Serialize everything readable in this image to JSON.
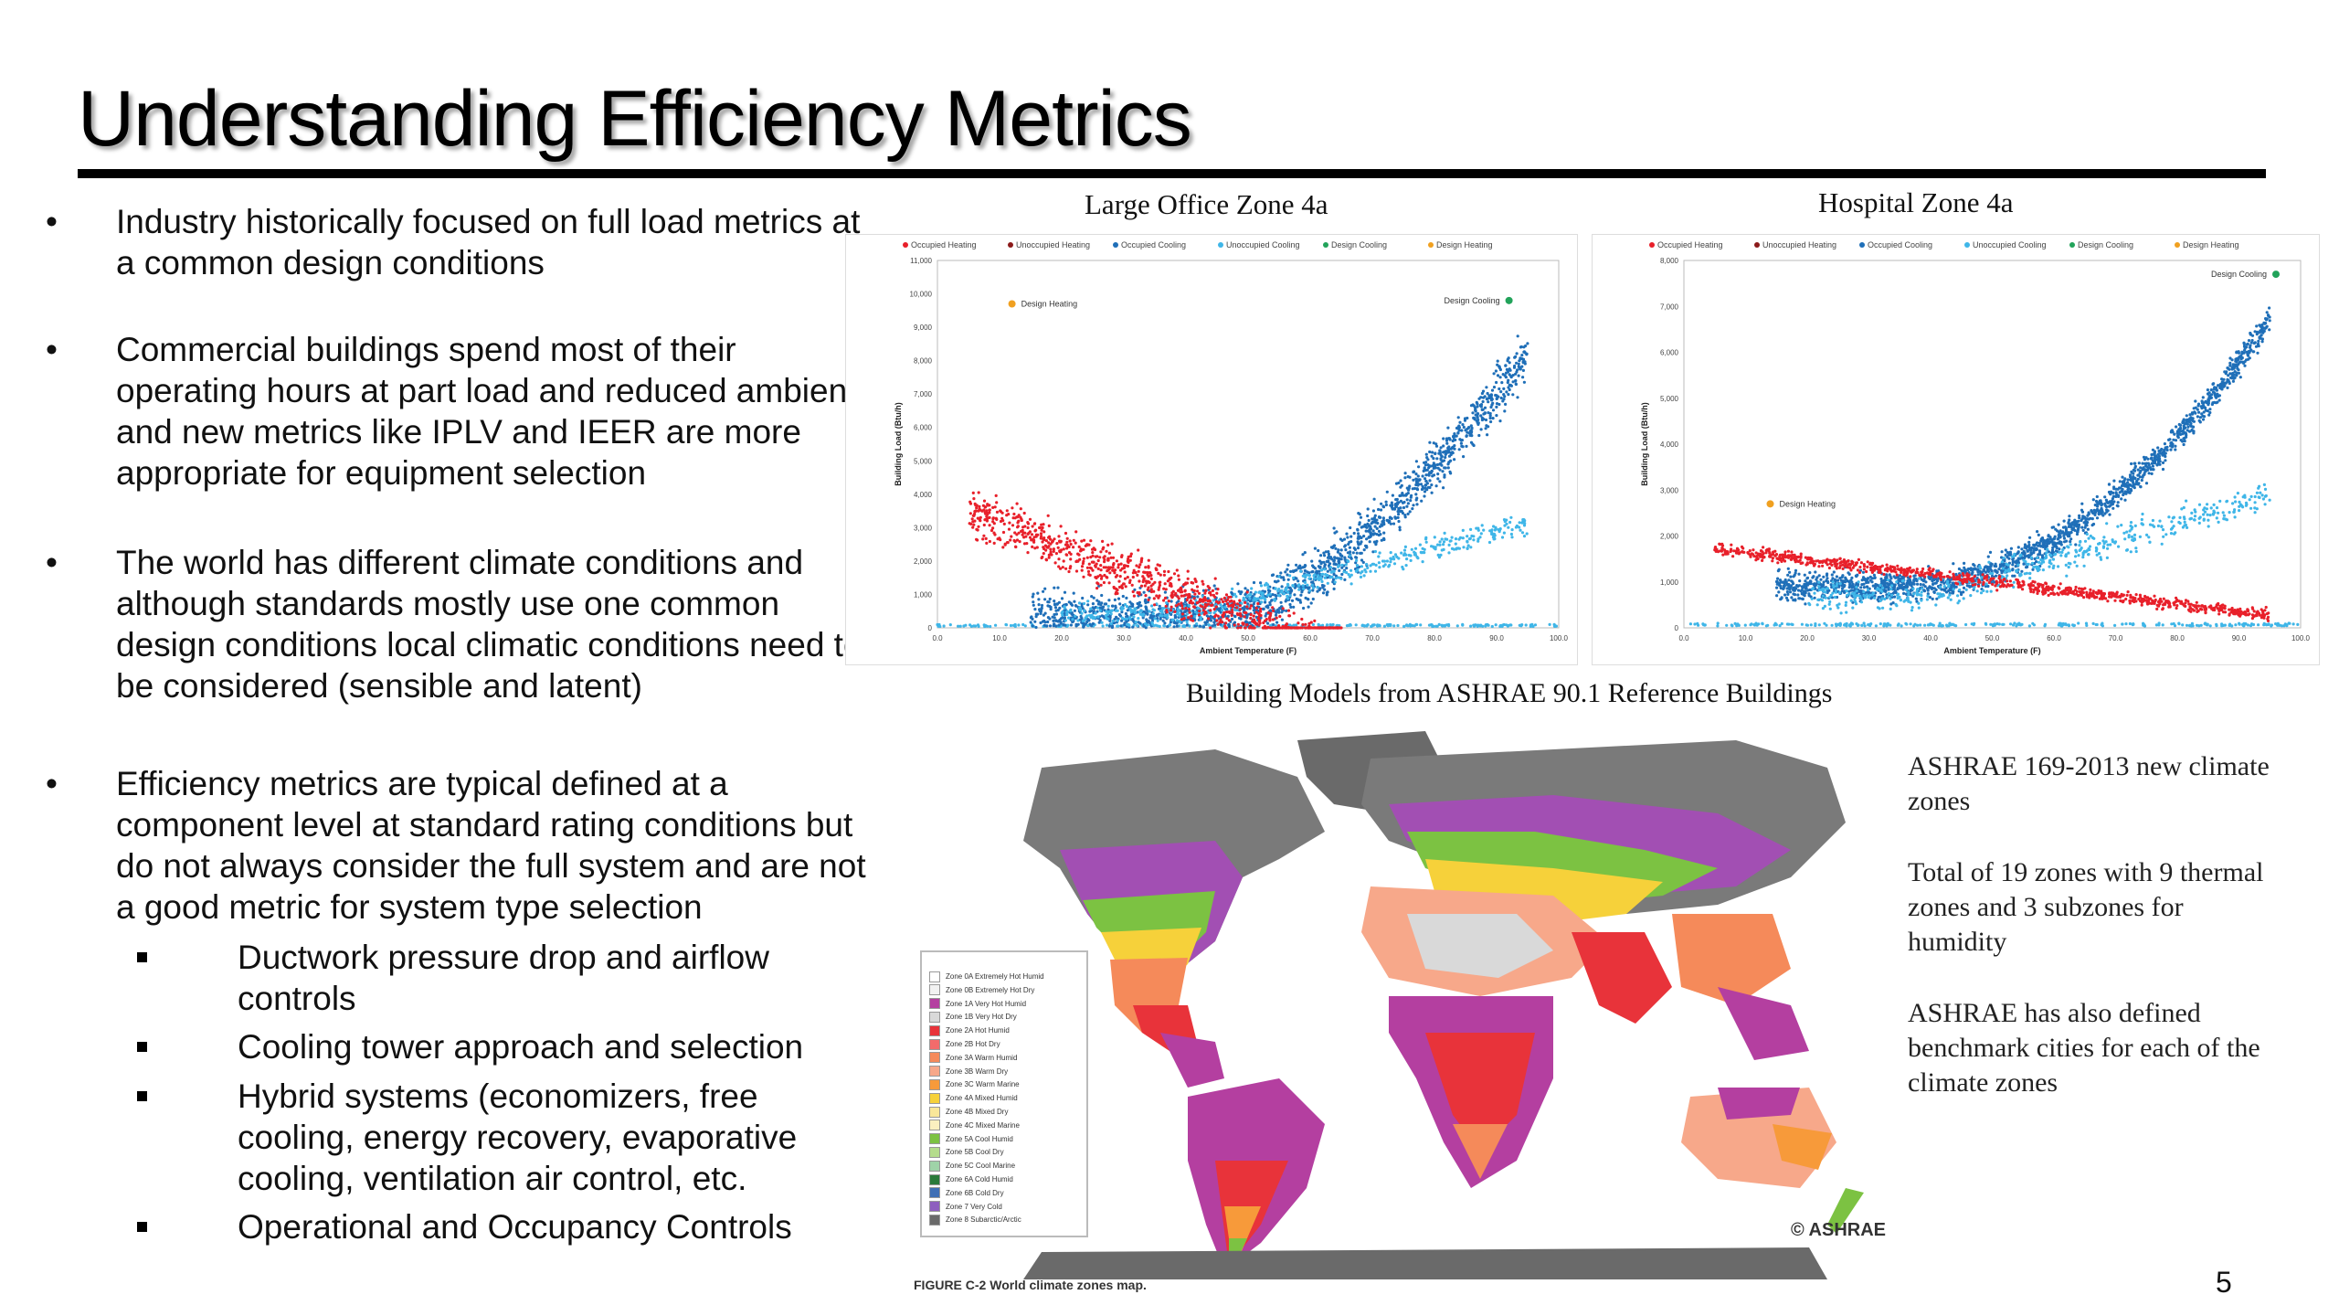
{
  "slide": {
    "title": "Understanding Efficiency Metrics",
    "page_number": "5",
    "bullets": [
      "Industry historically focused on full load metrics at a common design conditions",
      "Commercial buildings spend most of their operating hours at part load and reduced ambient and new metrics like IPLV and IEER are more appropriate for equipment selection",
      "The world has different climate conditions and although standards mostly use one common design conditions local climatic conditions need to be considered (sensible and latent)",
      "Efficiency metrics are typical defined at a component level at standard rating conditions but do not always consider the full system and are not a good metric for system type selection"
    ],
    "sub_bullets": [
      "Ductwork pressure drop and airflow controls",
      "Cooling tower approach and selection",
      "Hybrid systems (economizers, free cooling, energy recovery, evaporative cooling, ventilation air control, etc.",
      "Operational and Occupancy Controls"
    ],
    "charts_caption": "Building Models from ASHRAE 90.1 Reference Buildings",
    "side_text": [
      "ASHRAE 169-2013  new climate zones",
      "Total of 19 zones with 9 thermal zones and 3 subzones for humidity",
      "ASHRAE has also defined benchmark cities for each of the climate zones"
    ],
    "map": {
      "caption": "FIGURE C-2  World climate zones map.",
      "copyright": "© ASHRAE",
      "legend": [
        {
          "label": "Zone 0A Extremely Hot Humid",
          "color": "#ffffff"
        },
        {
          "label": "Zone 0B Extremely Hot Dry",
          "color": "#f2f2f2"
        },
        {
          "label": "Zone 1A Very Hot Humid",
          "color": "#b43fa0"
        },
        {
          "label": "Zone 1B Very Hot Dry",
          "color": "#d9d9d9"
        },
        {
          "label": "Zone 2A Hot Humid",
          "color": "#e8333a"
        },
        {
          "label": "Zone 2B Hot Dry",
          "color": "#f26b6b"
        },
        {
          "label": "Zone 3A Warm Humid",
          "color": "#f58a5a"
        },
        {
          "label": "Zone 3B Warm Dry",
          "color": "#f7a88a"
        },
        {
          "label": "Zone 3C Warm Marine",
          "color": "#f79a3a"
        },
        {
          "label": "Zone 4A Mixed Humid",
          "color": "#f6d13a"
        },
        {
          "label": "Zone 4B Mixed Dry",
          "color": "#f9e79a"
        },
        {
          "label": "Zone 4C Mixed Marine",
          "color": "#fbf0c0"
        },
        {
          "label": "Zone 5A Cool Humid",
          "color": "#7cc242"
        },
        {
          "label": "Zone 5B Cool Dry",
          "color": "#b5dc8c"
        },
        {
          "label": "Zone 5C Cool Marine",
          "color": "#9fd3a8"
        },
        {
          "label": "Zone 6A Cold Humid",
          "color": "#2a7a3a"
        },
        {
          "label": "Zone 6B Cold Dry",
          "color": "#3f6fb5"
        },
        {
          "label": "Zone 7 Very Cold",
          "color": "#8e5fbf"
        },
        {
          "label": "Zone 8 Subarctic/Arctic",
          "color": "#6a6a6a"
        }
      ]
    }
  },
  "chart_data": [
    {
      "type": "scatter",
      "title": "Large Office Zone 4a",
      "xlabel": "Ambient Temperature (F)",
      "ylabel": "Building Load (Btu/h)",
      "legend": [
        "Occupied Heating",
        "Unoccupied Heating",
        "Occupied Cooling",
        "Unoccupied Cooling",
        "Design Cooling",
        "Design Heating"
      ],
      "legend_placement": "top",
      "xlim": [
        0,
        100
      ],
      "ylim": [
        0,
        11000
      ],
      "x_ticks": [
        "0.0",
        "10.0",
        "20.0",
        "30.0",
        "40.0",
        "50.0",
        "60.0",
        "70.0",
        "80.0",
        "90.0",
        "100.0"
      ],
      "y_ticks": [
        "0",
        "1,000",
        "2,000",
        "3,000",
        "4,000",
        "5,000",
        "6,000",
        "7,000",
        "8,000",
        "9,000",
        "10,000",
        "11,000"
      ],
      "annotations": [
        {
          "text": "Design Heating",
          "x": 12,
          "y": 9700
        },
        {
          "text": "Design Cooling",
          "x": 92,
          "y": 9800
        }
      ],
      "series_colors": {
        "occupied_heating": "#e8202a",
        "unoccupied_heating": "#8b1a1a",
        "occupied_cooling": "#1f6fb8",
        "unoccupied_cooling": "#3fb6e8",
        "design_cooling": "#22a35a",
        "design_heating": "#f0a020"
      }
    },
    {
      "type": "scatter",
      "title": "Hospital Zone 4a",
      "xlabel": "Ambient Temperature (F)",
      "ylabel": "Building Load (Btu/h)",
      "legend": [
        "Occupied Heating",
        "Unoccupied Heating",
        "Occupied Cooling",
        "Unoccupied Cooling",
        "Design Cooling",
        "Design Heating"
      ],
      "legend_placement": "top",
      "xlim": [
        0,
        100
      ],
      "ylim": [
        0,
        8000
      ],
      "x_ticks": [
        "0.0",
        "10.0",
        "20.0",
        "30.0",
        "40.0",
        "50.0",
        "60.0",
        "70.0",
        "80.0",
        "90.0",
        "100.0"
      ],
      "y_ticks": [
        "0",
        "1,000",
        "2,000",
        "3,000",
        "4,000",
        "5,000",
        "6,000",
        "7,000",
        "8,000"
      ],
      "annotations": [
        {
          "text": "Design Heating",
          "x": 14,
          "y": 2700
        },
        {
          "text": "Design Cooling",
          "x": 96,
          "y": 7700
        }
      ],
      "series_colors": {
        "occupied_heating": "#e8202a",
        "unoccupied_heating": "#8b1a1a",
        "occupied_cooling": "#1f6fb8",
        "unoccupied_cooling": "#3fb6e8",
        "design_cooling": "#22a35a",
        "design_heating": "#f0a020"
      }
    }
  ]
}
